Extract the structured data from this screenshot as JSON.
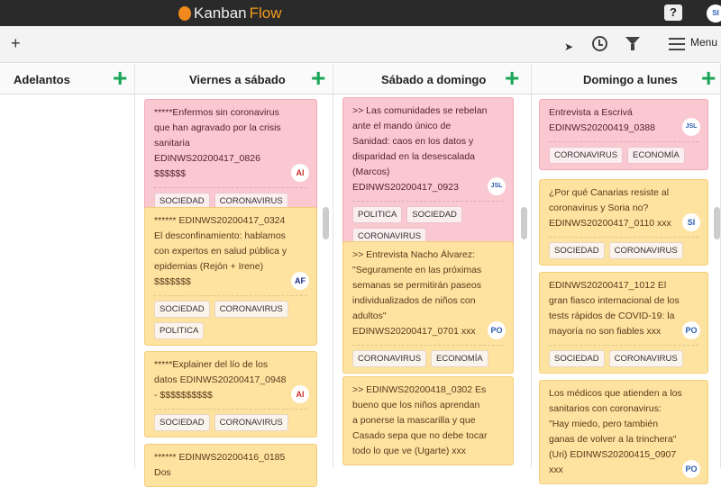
{
  "app": {
    "logo_a": "Kanban",
    "logo_b": "Flow",
    "help": "?",
    "user": "SI"
  },
  "toolbar": {
    "add": "+",
    "menu_label": "Menu"
  },
  "colors": {
    "pink": "#f9c8d0",
    "yellow": "#fde2a0",
    "add_green": "#1aa656"
  },
  "columns": [
    {
      "title": "Adelantos",
      "cards": []
    },
    {
      "title": "Viernes a sábado",
      "cards": [
        {
          "text": "*****Enfermos sin coronavirus que han agravado por la crisis sanitaria EDINWS20200417_0826 $$$$$$",
          "avatar": "AI",
          "color": "pink",
          "tags": [
            "SOCIEDAD",
            "CORONAVIRUS"
          ]
        },
        {
          "text": "****** EDINWS20200417_0324 El desconfinamiento: hablamos con expertos en salud pública y epidemias (Rejón + Irene) $$$$$$$",
          "avatar": "AF",
          "color": "yellow",
          "tags": [
            "SOCIEDAD",
            "CORONAVIRUS",
            "POLITICA"
          ]
        },
        {
          "text": "*****Explainer del lío de los datos EDINWS20200417_0948 - $$$$$$$$$$",
          "avatar": "AI",
          "color": "yellow",
          "tags": [
            "SOCIEDAD",
            "CORONAVIRUS"
          ]
        },
        {
          "text": "****** EDINWS20200416_0185 Dos",
          "color": "yellow"
        }
      ]
    },
    {
      "title": "Sábado a domingo",
      "cards": [
        {
          "text": ">> Las comunidades se rebelan ante el mando único de Sanidad: caos en los datos y disparidad en la desescalada (Marcos) EDINWS20200417_0923",
          "avatar": "JSL",
          "color": "pink",
          "tags": [
            "POLITICA",
            "SOCIEDAD",
            "CORONAVIRUS"
          ]
        },
        {
          "text": ">> Entrevista Nacho Álvarez: \"Seguramente en las próximas semanas se permitirán paseos individualizados de niños con adultos\" EDINWS20200417_0701 xxx",
          "avatar": "PO",
          "color": "yellow",
          "tags": [
            "CORONAVIRUS",
            "ECONOMÍA"
          ]
        },
        {
          "text": ">> EDINWS20200418_0302 Es bueno que los niños aprendan a ponerse la mascarilla y que Casado sepa que no debe tocar todo lo que ve (Ugarte) xxx",
          "color": "yellow"
        }
      ]
    },
    {
      "title": "Domingo a lunes",
      "cards": [
        {
          "text": "Entrevista a Escrivá EDINWS20200419_0388",
          "avatar": "JSL",
          "color": "pink",
          "tags": [
            "CORONAVIRUS",
            "ECONOMÍA"
          ]
        },
        {
          "text": "¿Por qué Canarias resiste al coronavirus y Soria no? EDINWS20200417_0110 xxx",
          "avatar": "SI",
          "color": "yellow",
          "tags": [
            "SOCIEDAD",
            "CORONAVIRUS"
          ]
        },
        {
          "text": "EDINWS20200417_1012 El gran fiasco internacional de los tests rápidos de COVID-19: la mayoría no son fiables xxx",
          "avatar": "PO",
          "color": "yellow",
          "tags": [
            "SOCIEDAD",
            "CORONAVIRUS"
          ]
        },
        {
          "text": "Los médicos que atienden a los sanitarios con coronavirus: \"Hay miedo, pero también ganas de volver a la trinchera\" (Uri) EDINWS20200415_0907 xxx",
          "avatar": "PO",
          "color": "yellow"
        }
      ]
    }
  ]
}
